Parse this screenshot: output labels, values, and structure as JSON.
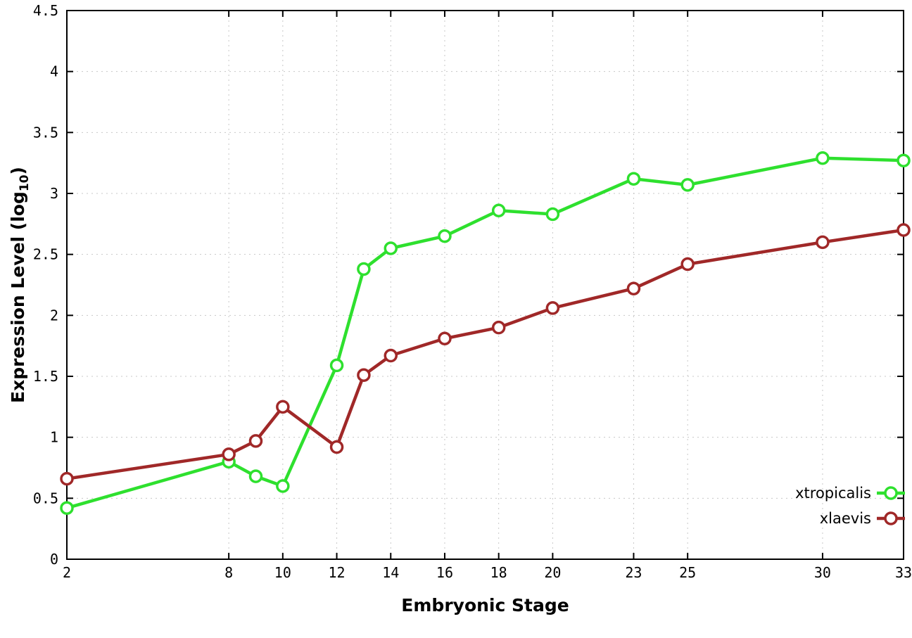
{
  "chart_data": {
    "type": "line",
    "title": "",
    "xlabel": "Embryonic Stage",
    "ylabel": "Expression Level (log10)",
    "ylabel_parts": {
      "prefix": "Expression Level (log",
      "sub": "10",
      "suffix": ")"
    },
    "xlim": [
      2,
      33
    ],
    "ylim": [
      0,
      4.5
    ],
    "x_ticks": [
      2,
      8,
      10,
      12,
      14,
      16,
      18,
      20,
      23,
      25,
      30,
      33
    ],
    "y_ticks": [
      0,
      0.5,
      1,
      1.5,
      2,
      2.5,
      3,
      3.5,
      4,
      4.5
    ],
    "grid": true,
    "legend_position": "inside bottom-right",
    "x": [
      2,
      8,
      9,
      10,
      12,
      13,
      14,
      16,
      18,
      20,
      23,
      25,
      30,
      33
    ],
    "series": [
      {
        "name": "xtropicalis",
        "color": "#2ee02e",
        "values": [
          0.42,
          0.8,
          0.68,
          0.6,
          1.59,
          2.38,
          2.55,
          2.65,
          2.86,
          2.83,
          3.12,
          3.07,
          3.29,
          3.27
        ]
      },
      {
        "name": "xlaevis",
        "color": "#a02828",
        "values": [
          0.66,
          0.86,
          0.97,
          1.25,
          0.92,
          1.51,
          1.67,
          1.81,
          1.9,
          2.06,
          2.22,
          2.42,
          2.6,
          2.7
        ]
      }
    ],
    "colors": {
      "grid": "#c8c8c8",
      "axis": "#000000",
      "background": "#ffffff",
      "marker_fill": "#ffffff"
    }
  }
}
